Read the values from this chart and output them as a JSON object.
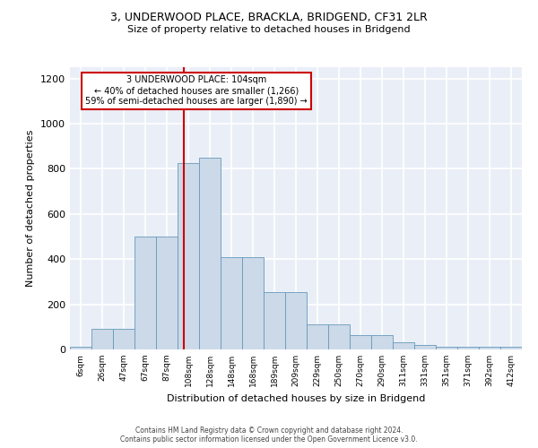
{
  "title_line1": "3, UNDERWOOD PLACE, BRACKLA, BRIDGEND, CF31 2LR",
  "title_line2": "Size of property relative to detached houses in Bridgend",
  "xlabel": "Distribution of detached houses by size in Bridgend",
  "ylabel": "Number of detached properties",
  "bin_labels": [
    "6sqm",
    "26sqm",
    "47sqm",
    "67sqm",
    "87sqm",
    "108sqm",
    "128sqm",
    "148sqm",
    "168sqm",
    "189sqm",
    "209sqm",
    "229sqm",
    "250sqm",
    "270sqm",
    "290sqm",
    "311sqm",
    "331sqm",
    "351sqm",
    "371sqm",
    "392sqm",
    "412sqm"
  ],
  "bar_heights": [
    10,
    90,
    90,
    500,
    500,
    825,
    850,
    410,
    410,
    255,
    255,
    110,
    110,
    65,
    65,
    30,
    20,
    13,
    13,
    13,
    10
  ],
  "bar_color": "#ccd9e8",
  "bar_edge_color": "#6699bb",
  "annotation_line1": "3 UNDERWOOD PLACE: 104sqm",
  "annotation_line2": "← 40% of detached houses are smaller (1,266)",
  "annotation_line3": "59% of semi-detached houses are larger (1,890) →",
  "vline_color": "#cc0000",
  "annotation_box_edge": "#cc0000",
  "ylim": [
    0,
    1250
  ],
  "yticks": [
    0,
    200,
    400,
    600,
    800,
    1000,
    1200
  ],
  "background_color": "#eaeff7",
  "grid_color": "#ffffff",
  "footer_line1": "Contains HM Land Registry data © Crown copyright and database right 2024.",
  "footer_line2": "Contains public sector information licensed under the Open Government Licence v3.0."
}
